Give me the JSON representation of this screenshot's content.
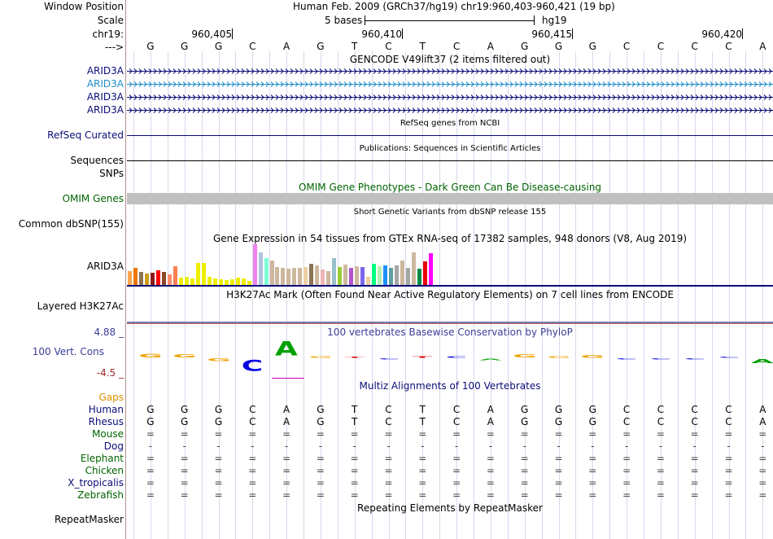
{
  "header": {
    "window_position_label": "Window Position",
    "scale_label": "Scale",
    "chrom_label": "chr19:",
    "arrow_label": "--->",
    "position_text": "Human Feb. 2009 (GRCh37/hg19)   chr19:960,403-960,421 (19 bp)",
    "scale_text": "5 bases",
    "assembly": "hg19",
    "coord_ticks": [
      "960,405",
      "960,410",
      "960,415",
      "960,420"
    ]
  },
  "sequence": [
    "G",
    "G",
    "G",
    "C",
    "A",
    "G",
    "T",
    "C",
    "T",
    "C",
    "A",
    "G",
    "G",
    "G",
    "C",
    "C",
    "C",
    "C",
    "A"
  ],
  "tracks": {
    "gencode": {
      "title": "GENCODE V49lift37 (2 items filtered out)",
      "genes": [
        {
          "name": "ARID3A",
          "color": "#0c0c78"
        },
        {
          "name": "ARID3A",
          "color": "#1e8cc8"
        },
        {
          "name": "ARID3A",
          "color": "#0c0c78"
        },
        {
          "name": "ARID3A",
          "color": "#0c0c78"
        }
      ]
    },
    "refseq": {
      "title": "RefSeq genes from NCBI",
      "label": "RefSeq Curated"
    },
    "pubs": {
      "title": "Publications: Sequences in Scientific Articles",
      "label": "Sequences"
    },
    "snps_label": "SNPs",
    "omim": {
      "title": "OMIM Gene Phenotypes - Dark Green Can Be Disease-causing",
      "label": "OMIM Genes"
    },
    "dbsnp": {
      "title": "Short Genetic Variants from dbSNP release 155",
      "label": "Common dbSNP(155)"
    },
    "gtex": {
      "title": "Gene Expression in 54 tissues from GTEx RNA-seq of 17382 samples, 948 donors (V8, Aug 2019)",
      "label": "ARID3A",
      "bar_levels": [
        0.35,
        0.42,
        0.33,
        0.29,
        0.3,
        0.36,
        0.32,
        0.27,
        0.46,
        0.18,
        0.2,
        0.16,
        0.54,
        0.54,
        0.2,
        0.16,
        0.14,
        0.13,
        0.15,
        0.19,
        0.16,
        0.1,
        1.0,
        0.8,
        0.66,
        0.6,
        0.44,
        0.42,
        0.4,
        0.42,
        0.42,
        0.44,
        0.52,
        0.48,
        0.38,
        0.34,
        0.66,
        0.44,
        0.5,
        0.42,
        0.46,
        0.44,
        0.2,
        0.52,
        0.46,
        0.48,
        0.42,
        0.48,
        0.6,
        0.42,
        0.8,
        0.4,
        0.58,
        0.78
      ],
      "bar_colors": [
        "#ffa54f",
        "#ee7600",
        "#8b7355",
        "#cd9b1d",
        "#8b1a1a",
        "#ff0000",
        "#8b4726",
        "#ff8c69",
        "#ff7f50",
        "#eeee00",
        "#eeee00",
        "#eeee00",
        "#eeee00",
        "#eeee00",
        "#eeee00",
        "#eeee00",
        "#eeee00",
        "#eeee00",
        "#eeee00",
        "#eeee00",
        "#eeee00",
        "#eeee00",
        "#ee82ee",
        "#b0c4de",
        "#7fffd4",
        "#cdb79e",
        "#cdb79e",
        "#cdb79e",
        "#cdb79e",
        "#cdb79e",
        "#cdb79e",
        "#eecfa1",
        "#8b7355",
        "#cdb79e",
        "#eeb4b4",
        "#cdb79e",
        "#9ac0cd",
        "#9acd32",
        "#cdb79e",
        "#b452cd",
        "#cdb79e",
        "#7a67ee",
        "#eecfa1",
        "#00ff7f",
        "#b4eeb4",
        "#1e90ff",
        "#5f9ea0",
        "#a6a6a6",
        "#cdb79e",
        "#a6a6a6",
        "#cdb79e",
        "#008b45",
        "#ee0000",
        "#ff00ff"
      ]
    },
    "h3k27ac": {
      "title": "H3K27Ac Mark (Often Found Near Active Regulatory Elements) on 7 cell lines from ENCODE",
      "label": "Layered H3K27Ac"
    },
    "phylop": {
      "title": "100 vertebrates Basewise Conservation by PhyloP",
      "label": "100 Vert. Cons",
      "ymax": "4.88 _",
      "ymin": "-4.5 _",
      "scores": [
        0.45,
        0.4,
        -0.3,
        -1.3,
        1.7,
        0.2,
        0.1,
        -0.1,
        0.2,
        0.2,
        -0.2,
        0.4,
        0.2,
        0.3,
        -0.1,
        -0.1,
        -0.1,
        0.1,
        -0.5
      ]
    },
    "multiz": {
      "title": "Multiz Alignments of 100 Vertebrates",
      "gaps_label": "Gaps",
      "species": [
        {
          "name": "Human",
          "color": "#0c0c78",
          "row": [
            "G",
            "G",
            "G",
            "C",
            "A",
            "G",
            "T",
            "C",
            "T",
            "C",
            "A",
            "G",
            "G",
            "G",
            "C",
            "C",
            "C",
            "C",
            "A"
          ]
        },
        {
          "name": "Rhesus",
          "color": "#0c0c78",
          "row": [
            "G",
            "G",
            "G",
            "C",
            "A",
            "G",
            "T",
            "C",
            "T",
            "C",
            "A",
            "G",
            "G",
            "G",
            "C",
            "C",
            "C",
            "C",
            "A"
          ]
        },
        {
          "name": "Mouse",
          "color": "#006400",
          "row": [
            "=",
            "=",
            "=",
            "=",
            "=",
            "=",
            "=",
            "=",
            "=",
            "=",
            "=",
            "=",
            "=",
            "=",
            "=",
            "=",
            "=",
            "=",
            "="
          ]
        },
        {
          "name": "Dog",
          "color": "#0c0c78",
          "row": [
            "-",
            "-",
            "-",
            "-",
            "-",
            "-",
            "-",
            "-",
            "-",
            "-",
            "-",
            "-",
            "-",
            "-",
            "-",
            "-",
            "-",
            "-",
            "-"
          ]
        },
        {
          "name": "Elephant",
          "color": "#006400",
          "row": [
            "=",
            "=",
            "=",
            "=",
            "=",
            "=",
            "=",
            "=",
            "=",
            "=",
            "=",
            "=",
            "=",
            "=",
            "=",
            "=",
            "=",
            "=",
            "="
          ]
        },
        {
          "name": "Chicken",
          "color": "#006400",
          "row": [
            "=",
            "=",
            "=",
            "=",
            "=",
            "=",
            "=",
            "=",
            "=",
            "=",
            "=",
            "=",
            "=",
            "=",
            "=",
            "=",
            "=",
            "=",
            "="
          ]
        },
        {
          "name": "X_tropicalis",
          "color": "#0c0c78",
          "row": [
            "=",
            "=",
            "=",
            "=",
            "=",
            "=",
            "=",
            "=",
            "=",
            "=",
            "=",
            "=",
            "=",
            "=",
            "=",
            "=",
            "=",
            "=",
            "="
          ]
        },
        {
          "name": "Zebrafish",
          "color": "#006400",
          "row": [
            "=",
            "=",
            "=",
            "=",
            "=",
            "=",
            "=",
            "=",
            "=",
            "=",
            "=",
            "=",
            "=",
            "=",
            "=",
            "=",
            "=",
            "=",
            "="
          ]
        }
      ]
    },
    "repeatmasker": {
      "title": "Repeating Elements by RepeatMasker",
      "label": "RepeatMasker"
    }
  },
  "colors": {
    "label_blue": "#0c0c78",
    "omim_green": "#006400",
    "gaps_orange": "#e09000",
    "phylop_blue": "#3c3c98",
    "phylop_red": "#a02828",
    "base_A": "#00a000",
    "base_C": "#0000e0",
    "base_G": "#f0a000",
    "base_T": "#e00000"
  }
}
